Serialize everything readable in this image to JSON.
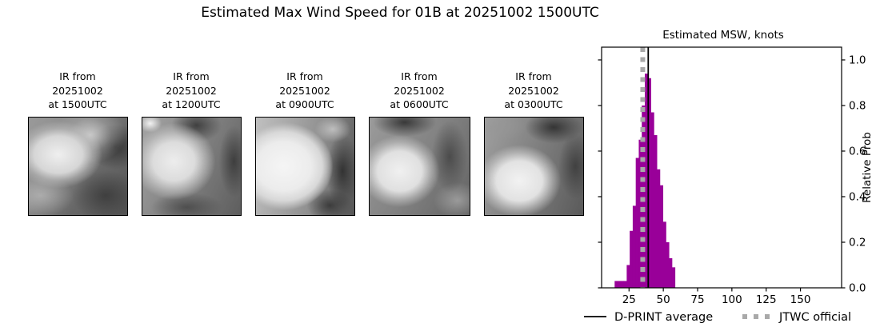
{
  "title": "Estimated Max Wind Speed for 01B at 20251002 1500UTC",
  "panels": [
    {
      "lines": [
        "IR from",
        "20251002",
        "at 1500UTC"
      ]
    },
    {
      "lines": [
        "IR from",
        "20251002",
        "at 1200UTC"
      ]
    },
    {
      "lines": [
        "IR from",
        "20251002",
        "at 0900UTC"
      ]
    },
    {
      "lines": [
        "IR from",
        "20251002",
        "at 0600UTC"
      ]
    },
    {
      "lines": [
        "IR from",
        "20251002",
        "at 0300UTC"
      ]
    }
  ],
  "chart_data": {
    "type": "bar",
    "title": "Estimated MSW, knots",
    "ylabel": "Relative Prob",
    "xlim": [
      5,
      180
    ],
    "ylim": [
      0,
      1.056
    ],
    "x_ticks": [
      25,
      50,
      75,
      100,
      125,
      150
    ],
    "y_ticks": [
      0.0,
      0.2,
      0.4,
      0.6,
      0.8,
      1.0
    ],
    "grid": false,
    "bar_color": "#990099",
    "bin_start": 14.5,
    "bin_width": 2.2,
    "bin_heights": [
      0.03,
      0.03,
      0.03,
      0.03,
      0.1,
      0.25,
      0.36,
      0.57,
      0.65,
      0.8,
      0.94,
      0.92,
      0.77,
      0.67,
      0.52,
      0.45,
      0.29,
      0.2,
      0.13,
      0.09
    ],
    "vlines": [
      {
        "label": "D-PRINT average",
        "value": 39,
        "style": "solid",
        "color": "#000000"
      },
      {
        "label": "JTWC official",
        "value": 35,
        "style": "dotted",
        "color": "#a9a9a9"
      }
    ],
    "legend": [
      {
        "label": "D-PRINT average",
        "style": "solid",
        "color": "#000000"
      },
      {
        "label": "JTWC official",
        "style": "dotted",
        "color": "#a9a9a9"
      }
    ],
    "legend_position": "bottom"
  }
}
